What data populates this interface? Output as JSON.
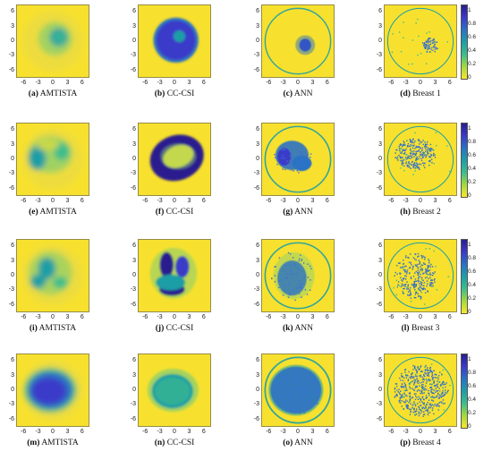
{
  "chart_data": {
    "type": "heatmap",
    "x_ticks": [
      "-6",
      "-3",
      "0",
      "3",
      "6"
    ],
    "y_ticks": [
      "6",
      "3",
      "0",
      "-3",
      "-6"
    ],
    "xlim": [
      -7.5,
      7.5
    ],
    "ylim": [
      -7.5,
      7.5
    ],
    "colorbar": {
      "ticks": [
        "1",
        "0.8",
        "0.6",
        "0.4",
        "0.2",
        "0"
      ],
      "range": [
        0,
        1.1
      ]
    },
    "colormap": [
      "#f9e72b",
      "#a3d93f",
      "#3dbd8c",
      "#1f9ea6",
      "#2b72c4",
      "#3b3ac9",
      "#2a1d8f"
    ],
    "rows": [
      {
        "panels": [
          {
            "letter": "(a)",
            "name": "AMTISTA"
          },
          {
            "letter": "(b)",
            "name": "CC-CSI"
          },
          {
            "letter": "(c)",
            "name": "ANN"
          },
          {
            "letter": "(d)",
            "name": "Breast 1"
          }
        ]
      },
      {
        "panels": [
          {
            "letter": "(e)",
            "name": "AMTISTA"
          },
          {
            "letter": "(f)",
            "name": "CC-CSI"
          },
          {
            "letter": "(g)",
            "name": "ANN"
          },
          {
            "letter": "(h)",
            "name": "Breast 2"
          }
        ]
      },
      {
        "panels": [
          {
            "letter": "(i)",
            "name": "AMTISTA"
          },
          {
            "letter": "(j)",
            "name": "CC-CSI"
          },
          {
            "letter": "(k)",
            "name": "ANN"
          },
          {
            "letter": "(l)",
            "name": "Breast 3"
          }
        ]
      },
      {
        "panels": [
          {
            "letter": "(m)",
            "name": "AMTISTA"
          },
          {
            "letter": "(n)",
            "name": "CC-CSI"
          },
          {
            "letter": "(o)",
            "name": "ANN"
          },
          {
            "letter": "(p)",
            "name": "Breast 4"
          }
        ]
      }
    ]
  }
}
